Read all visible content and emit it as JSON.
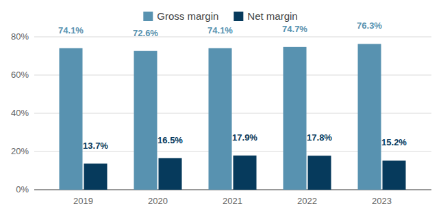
{
  "chart_data": {
    "type": "bar",
    "categories": [
      "2019",
      "2020",
      "2021",
      "2022",
      "2023"
    ],
    "series": [
      {
        "name": "Gross margin",
        "color": "#5892b0",
        "values": [
          74.1,
          72.6,
          74.1,
          74.7,
          76.3
        ],
        "value_labels": [
          "74.1%",
          "72.6%",
          "74.1%",
          "74.7%",
          "76.3%"
        ]
      },
      {
        "name": "Net margin",
        "color": "#063a5c",
        "values": [
          13.7,
          16.5,
          17.9,
          17.8,
          15.2
        ],
        "value_labels": [
          "13.7%",
          "16.5%",
          "17.9%",
          "17.8%",
          "15.2%"
        ]
      }
    ],
    "ylim": [
      0,
      80
    ],
    "yticks": [
      {
        "value": 0,
        "label": "0%"
      },
      {
        "value": 20,
        "label": "20%"
      },
      {
        "value": 40,
        "label": "40%"
      },
      {
        "value": 60,
        "label": "60%"
      },
      {
        "value": 80,
        "label": "80%"
      }
    ],
    "grid": true,
    "legend": "top",
    "data_labels": true
  }
}
